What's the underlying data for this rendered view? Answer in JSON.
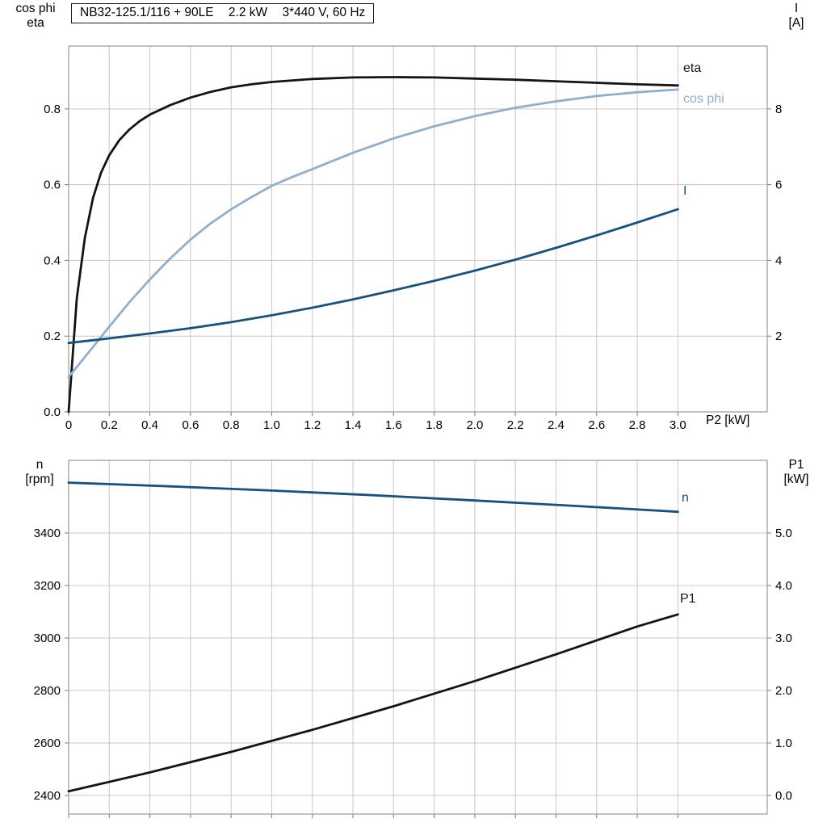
{
  "header": {
    "title_model": "NB32-125.1/116 + 90LE",
    "title_power": "2.2 kW",
    "title_supply": "3*440 V, 60 Hz"
  },
  "colors": {
    "black": "#141414",
    "dark_blue": "#17517e",
    "light_blue": "#8fafcd",
    "grid": "#c8c8c8",
    "frame": "#9a9a9a",
    "tick": "#787878"
  },
  "chart_data": [
    {
      "type": "line",
      "name": "motor-electrical-curves",
      "title": "NB32-125.1/116 + 90LE 2.2 kW 3*440 V, 60 Hz",
      "xlabel": "P2 [kW]",
      "axis_labels": {
        "left": [
          "cos phi",
          "eta"
        ],
        "right": [
          "I",
          "[A]"
        ]
      },
      "grid": true,
      "legend_position": "right-of-curve-end",
      "xlim": [
        0,
        3.44
      ],
      "x_ticks": [
        0,
        0.2,
        0.4,
        0.6,
        0.8,
        1.0,
        1.2,
        1.4,
        1.6,
        1.8,
        2.0,
        2.2,
        2.4,
        2.6,
        2.8,
        3.0
      ],
      "x_tick_labels": [
        "0",
        "0.2",
        "0.4",
        "0.6",
        "0.8",
        "1.0",
        "1.2",
        "1.4",
        "1.6",
        "1.8",
        "2.0",
        "2.2",
        "2.4",
        "2.6",
        "2.8",
        "3.0"
      ],
      "left_ylim": [
        0,
        0.966
      ],
      "left_ticks": [
        0.0,
        0.2,
        0.4,
        0.6,
        0.8
      ],
      "left_tick_labels": [
        "0.0",
        "0.2",
        "0.4",
        "0.6",
        "0.8"
      ],
      "right_ylim": [
        0,
        9.66
      ],
      "right_ticks": [
        2,
        4,
        6,
        8
      ],
      "right_tick_labels": [
        "2",
        "4",
        "6",
        "8"
      ],
      "series": [
        {
          "name": "eta",
          "axis": "left",
          "color_key": "black",
          "x": [
            0,
            0.04,
            0.08,
            0.12,
            0.16,
            0.2,
            0.25,
            0.3,
            0.35,
            0.4,
            0.5,
            0.6,
            0.7,
            0.8,
            0.9,
            1.0,
            1.2,
            1.4,
            1.6,
            1.8,
            2.0,
            2.2,
            2.4,
            2.6,
            2.8,
            3.0
          ],
          "y": [
            0,
            0.3,
            0.46,
            0.565,
            0.632,
            0.678,
            0.718,
            0.746,
            0.768,
            0.785,
            0.81,
            0.83,
            0.845,
            0.857,
            0.865,
            0.871,
            0.879,
            0.883,
            0.884,
            0.883,
            0.88,
            0.877,
            0.873,
            0.869,
            0.865,
            0.862
          ]
        },
        {
          "name": "cos phi",
          "axis": "left",
          "color_key": "light_blue",
          "x": [
            0,
            0.1,
            0.2,
            0.3,
            0.4,
            0.5,
            0.6,
            0.7,
            0.8,
            0.9,
            1.0,
            1.1,
            1.2,
            1.4,
            1.6,
            1.8,
            2.0,
            2.2,
            2.4,
            2.6,
            2.8,
            3.0
          ],
          "y": [
            0.092,
            0.158,
            0.225,
            0.29,
            0.35,
            0.405,
            0.455,
            0.498,
            0.535,
            0.567,
            0.597,
            0.62,
            0.641,
            0.684,
            0.722,
            0.754,
            0.781,
            0.803,
            0.82,
            0.834,
            0.844,
            0.851
          ]
        },
        {
          "name": "I",
          "axis": "right",
          "color_key": "dark_blue",
          "x": [
            0,
            0.2,
            0.4,
            0.6,
            0.8,
            1.0,
            1.2,
            1.4,
            1.6,
            1.8,
            2.0,
            2.2,
            2.4,
            2.6,
            2.8,
            3.0
          ],
          "y": [
            1.82,
            1.94,
            2.07,
            2.21,
            2.37,
            2.55,
            2.75,
            2.97,
            3.21,
            3.46,
            3.73,
            4.02,
            4.33,
            4.66,
            5.0,
            5.35
          ]
        }
      ]
    },
    {
      "type": "line",
      "name": "speed-and-input-power-curves",
      "title": "",
      "xlabel": "",
      "axis_labels": {
        "left": [
          "n",
          "[rpm]"
        ],
        "right": [
          "P1",
          "[kW]"
        ]
      },
      "grid": true,
      "legend_position": "right-of-curve-end",
      "xlim": [
        0,
        3.44
      ],
      "x_ticks": [
        0,
        0.2,
        0.4,
        0.6,
        0.8,
        1.0,
        1.2,
        1.4,
        1.6,
        1.8,
        2.0,
        2.2,
        2.4,
        2.6,
        2.8,
        3.0
      ],
      "x_tick_labels": [],
      "left_ylim": [
        2329,
        3677
      ],
      "left_ticks": [
        2400,
        2600,
        2800,
        3000,
        3200,
        3400
      ],
      "left_tick_labels": [
        "2400",
        "2600",
        "2800",
        "3000",
        "3200",
        "3400"
      ],
      "right_ylim": [
        -0.354,
        6.385
      ],
      "right_ticks": [
        0,
        1,
        2,
        3,
        4,
        5
      ],
      "right_tick_labels": [
        "0.0",
        "1.0",
        "2.0",
        "3.0",
        "4.0",
        "5.0"
      ],
      "series": [
        {
          "name": "n",
          "axis": "left",
          "color_key": "dark_blue",
          "x": [
            0,
            0.5,
            1.0,
            1.5,
            2.0,
            2.5,
            3.0
          ],
          "y": [
            3592,
            3578,
            3562,
            3544,
            3524,
            3503,
            3481
          ]
        },
        {
          "name": "P1",
          "axis": "right",
          "color_key": "black",
          "x": [
            0,
            0.4,
            0.8,
            1.2,
            1.6,
            2.0,
            2.4,
            2.8,
            3.0
          ],
          "y": [
            0.08,
            0.44,
            0.83,
            1.25,
            1.7,
            2.18,
            2.69,
            3.22,
            3.45
          ]
        }
      ]
    }
  ]
}
